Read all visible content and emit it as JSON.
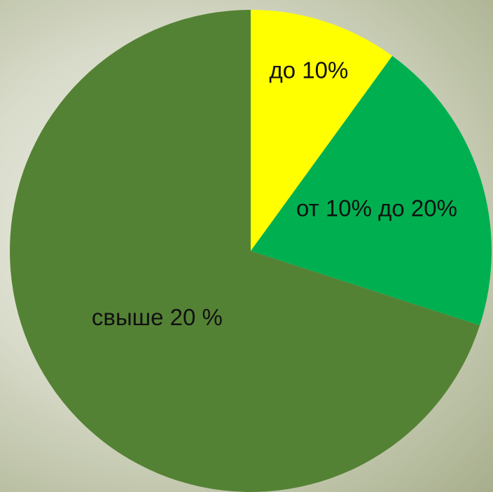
{
  "chart_data": {
    "type": "pie",
    "categories": [
      "до 10%",
      "от 10% до 20%",
      "свыше 20 %"
    ],
    "values": [
      10,
      20,
      70
    ],
    "colors": [
      "#ffff00",
      "#00b050",
      "#548235"
    ]
  }
}
